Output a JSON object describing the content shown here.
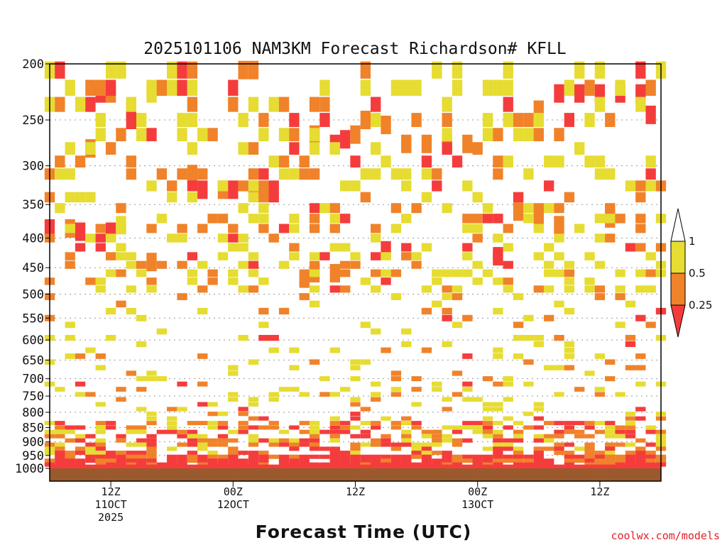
{
  "chart_data": {
    "type": "heatmap",
    "title": "2025101106 NAM3KM Forecast Richardson# KFLL",
    "xlabel": "Forecast Time (UTC)",
    "ylabel": "",
    "credit": "coolwx.com/models",
    "forecast_hour_range": [
      0,
      60
    ],
    "pressure_range_hpa": [
      200,
      1000
    ],
    "y_ticks": [
      {
        "value": 200,
        "label": "200"
      },
      {
        "value": 250,
        "label": "250"
      },
      {
        "value": 300,
        "label": "300"
      },
      {
        "value": 350,
        "label": "350"
      },
      {
        "value": 400,
        "label": "400"
      },
      {
        "value": 450,
        "label": "450"
      },
      {
        "value": 500,
        "label": "500"
      },
      {
        "value": 550,
        "label": "550"
      },
      {
        "value": 600,
        "label": "600"
      },
      {
        "value": 650,
        "label": "650"
      },
      {
        "value": 700,
        "label": "700"
      },
      {
        "value": 750,
        "label": "750"
      },
      {
        "value": 800,
        "label": "800"
      },
      {
        "value": 850,
        "label": "850"
      },
      {
        "value": 900,
        "label": "900"
      },
      {
        "value": 950,
        "label": "950"
      },
      {
        "value": 1000,
        "label": "1000"
      }
    ],
    "x_ticks": [
      {
        "hour": 6,
        "labels": [
          "12Z",
          "11OCT",
          "2025"
        ]
      },
      {
        "hour": 18,
        "labels": [
          "00Z",
          "12OCT"
        ]
      },
      {
        "hour": 30,
        "labels": [
          "12Z"
        ]
      },
      {
        "hour": 42,
        "labels": [
          "00Z",
          "13OCT"
        ]
      },
      {
        "hour": 54,
        "labels": [
          "12Z"
        ]
      }
    ],
    "legend": {
      "levels": [
        "1",
        "0.5",
        "0.25"
      ],
      "bins": [
        {
          "range": "> 1",
          "color": "#ffffff"
        },
        {
          "range": "0.5 - 1",
          "color": "#e6dc32"
        },
        {
          "range": "0.25 - 0.5",
          "color": "#f0822a"
        },
        {
          "range": "< 0.25",
          "color": "#f53c3c"
        }
      ]
    },
    "ground_color": "#9b5a2d",
    "cells_approx": [
      {
        "hour": 5,
        "p": 225,
        "ri": 0.15
      },
      {
        "hour": 6,
        "p": 225,
        "ri": 0.3
      },
      {
        "hour": 8,
        "p": 240,
        "ri": 0.35
      },
      {
        "hour": 10,
        "p": 225,
        "ri": 0.6
      },
      {
        "hour": 4,
        "p": 280,
        "ri": 0.3
      },
      {
        "hour": 8,
        "p": 250,
        "ri": 0.2
      },
      {
        "hour": 0,
        "p": 385,
        "ri": 0.15
      },
      {
        "hour": 2,
        "p": 385,
        "ri": 0.3
      },
      {
        "hour": 3,
        "p": 390,
        "ri": 0.15
      },
      {
        "hour": 6,
        "p": 390,
        "ri": 0.15
      },
      {
        "hour": 7,
        "p": 380,
        "ri": 0.6
      },
      {
        "hour": 10,
        "p": 440,
        "ri": 0.3
      },
      {
        "hour": 14,
        "p": 310,
        "ri": 0.35
      },
      {
        "hour": 15,
        "p": 330,
        "ri": 0.2
      },
      {
        "hour": 17,
        "p": 330,
        "ri": 0.3
      },
      {
        "hour": 18,
        "p": 330,
        "ri": 0.15
      },
      {
        "hour": 20,
        "p": 330,
        "ri": 0.3
      },
      {
        "hour": 21,
        "p": 330,
        "ri": 0.3
      },
      {
        "hour": 22,
        "p": 330,
        "ri": 0.15
      },
      {
        "hour": 19,
        "p": 205,
        "ri": 0.35
      },
      {
        "hour": 20,
        "p": 205,
        "ri": 0.35
      },
      {
        "hour": 26,
        "p": 265,
        "ri": 0.3
      },
      {
        "hour": 28,
        "p": 275,
        "ri": 0.15
      },
      {
        "hour": 29,
        "p": 270,
        "ri": 0.15
      },
      {
        "hour": 30,
        "p": 265,
        "ri": 0.35
      },
      {
        "hour": 31,
        "p": 250,
        "ri": 0.35
      },
      {
        "hour": 33,
        "p": 255,
        "ri": 0.35
      },
      {
        "hour": 35,
        "p": 275,
        "ri": 0.35
      },
      {
        "hour": 37,
        "p": 275,
        "ri": 0.35
      },
      {
        "hour": 39,
        "p": 275,
        "ri": 0.35
      },
      {
        "hour": 41,
        "p": 275,
        "ri": 0.35
      },
      {
        "hour": 25,
        "p": 470,
        "ri": 0.35
      },
      {
        "hour": 26,
        "p": 460,
        "ri": 0.35
      },
      {
        "hour": 28,
        "p": 460,
        "ri": 0.35
      },
      {
        "hour": 33,
        "p": 420,
        "ri": 0.15
      },
      {
        "hour": 48,
        "p": 240,
        "ri": 0.3
      },
      {
        "hour": 50,
        "p": 225,
        "ri": 0.15
      },
      {
        "hour": 52,
        "p": 225,
        "ri": 0.15
      },
      {
        "hour": 54,
        "p": 225,
        "ri": 0.15
      },
      {
        "hour": 56,
        "p": 225,
        "ri": 0.15
      },
      {
        "hour": 58,
        "p": 225,
        "ri": 0.15
      },
      {
        "hour": 59,
        "p": 245,
        "ri": 0.15
      },
      {
        "hour": 46,
        "p": 360,
        "ri": 0.35
      },
      {
        "hour": 48,
        "p": 370,
        "ri": 0.35
      },
      {
        "hour": 50,
        "p": 380,
        "ri": 0.35
      },
      {
        "hour": 55,
        "p": 370,
        "ri": 0.35
      },
      {
        "hour": 44,
        "p": 430,
        "ri": 0.15
      }
    ],
    "surface_layer_note": "Richardson number below 0.25 (red) across the lowest levels near 950-1000 hPa for most forecast hours"
  }
}
